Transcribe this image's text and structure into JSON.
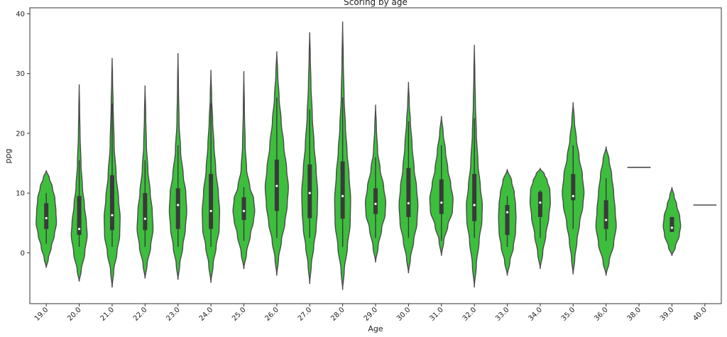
{
  "chart_data": {
    "type": "violin",
    "title": "Scoring by age",
    "xlabel": "Age",
    "ylabel": "ppg",
    "ylim": [
      -8.5,
      41
    ],
    "yticks": [
      0,
      10,
      20,
      30,
      40
    ],
    "grid": false,
    "legend": "none",
    "fill_color": "#3dbf3d",
    "edge_color": "#4a4a4a",
    "box_color": "#3a3a3a",
    "categories": [
      "19.0",
      "20.0",
      "21.0",
      "22.0",
      "23.0",
      "24.0",
      "25.0",
      "26.0",
      "27.0",
      "28.0",
      "29.0",
      "30.0",
      "31.0",
      "32.0",
      "33.0",
      "34.0",
      "35.0",
      "36.0",
      "38.0",
      "39.0",
      "40.0"
    ],
    "violins": [
      {
        "age": "19.0",
        "min": -2.5,
        "max": 13.8,
        "q1": 4.0,
        "median": 5.8,
        "q3": 8.3,
        "wlo": 1.5,
        "whi": 10.0,
        "width": 0.7,
        "shape": [
          [
            -2.5,
            0
          ],
          [
            -1,
            0.2
          ],
          [
            1,
            0.5
          ],
          [
            3,
            0.8
          ],
          [
            5,
            1
          ],
          [
            7,
            0.95
          ],
          [
            9,
            0.85
          ],
          [
            11,
            0.6
          ],
          [
            12.5,
            0.3
          ],
          [
            13.8,
            0
          ]
        ]
      },
      {
        "age": "20.0",
        "min": -4.8,
        "max": 28.2,
        "q1": 3.0,
        "median": 4.0,
        "q3": 9.5,
        "wlo": 1.0,
        "whi": 15.5,
        "width": 0.55,
        "shape": [
          [
            -4.8,
            0
          ],
          [
            -3,
            0.25
          ],
          [
            0,
            0.7
          ],
          [
            3,
            1
          ],
          [
            5,
            0.9
          ],
          [
            8,
            0.65
          ],
          [
            11,
            0.4
          ],
          [
            15,
            0.22
          ],
          [
            20,
            0.1
          ],
          [
            24,
            0.05
          ],
          [
            28.2,
            0
          ]
        ]
      },
      {
        "age": "21.0",
        "min": -5.8,
        "max": 32.6,
        "q1": 3.8,
        "median": 6.3,
        "q3": 13.0,
        "wlo": 1.0,
        "whi": 25.0,
        "width": 0.55,
        "shape": [
          [
            -5.8,
            0
          ],
          [
            -3,
            0.2
          ],
          [
            0,
            0.6
          ],
          [
            3,
            0.95
          ],
          [
            6,
            1
          ],
          [
            9,
            0.8
          ],
          [
            13,
            0.5
          ],
          [
            18,
            0.25
          ],
          [
            25,
            0.12
          ],
          [
            29,
            0.05
          ],
          [
            32.6,
            0
          ]
        ]
      },
      {
        "age": "22.0",
        "min": -4.3,
        "max": 28.0,
        "q1": 3.8,
        "median": 5.7,
        "q3": 10.0,
        "wlo": 1.0,
        "whi": 15.5,
        "width": 0.55,
        "shape": [
          [
            -4.3,
            0
          ],
          [
            -2,
            0.25
          ],
          [
            1,
            0.7
          ],
          [
            4,
            1
          ],
          [
            7,
            0.9
          ],
          [
            10,
            0.65
          ],
          [
            14,
            0.35
          ],
          [
            18,
            0.17
          ],
          [
            23,
            0.08
          ],
          [
            28,
            0
          ]
        ]
      },
      {
        "age": "23.0",
        "min": -4.5,
        "max": 33.4,
        "q1": 4.0,
        "median": 8.0,
        "q3": 10.8,
        "wlo": 1.0,
        "whi": 18.0,
        "width": 0.6,
        "shape": [
          [
            -4.5,
            0
          ],
          [
            -2,
            0.2
          ],
          [
            1,
            0.55
          ],
          [
            4,
            0.85
          ],
          [
            7,
            1
          ],
          [
            10,
            0.9
          ],
          [
            13,
            0.6
          ],
          [
            17,
            0.3
          ],
          [
            22,
            0.12
          ],
          [
            28,
            0.05
          ],
          [
            33.4,
            0
          ]
        ]
      },
      {
        "age": "24.0",
        "min": -5.0,
        "max": 30.6,
        "q1": 4.0,
        "median": 7.0,
        "q3": 13.2,
        "wlo": 1.0,
        "whi": 25.0,
        "width": 0.6,
        "shape": [
          [
            -5,
            0
          ],
          [
            -2,
            0.25
          ],
          [
            1,
            0.6
          ],
          [
            4,
            0.95
          ],
          [
            7,
            1
          ],
          [
            10,
            0.85
          ],
          [
            14,
            0.55
          ],
          [
            18,
            0.35
          ],
          [
            22,
            0.2
          ],
          [
            26,
            0.08
          ],
          [
            30.6,
            0
          ]
        ]
      },
      {
        "age": "25.0",
        "min": -2.7,
        "max": 30.4,
        "q1": 5.5,
        "median": 7.0,
        "q3": 9.3,
        "wlo": 2.0,
        "whi": 11.0,
        "width": 0.75,
        "shape": [
          [
            -2.7,
            0
          ],
          [
            0,
            0.25
          ],
          [
            3,
            0.6
          ],
          [
            5.5,
            0.9
          ],
          [
            7,
            1
          ],
          [
            9,
            0.9
          ],
          [
            11,
            0.55
          ],
          [
            14,
            0.25
          ],
          [
            18,
            0.12
          ],
          [
            24,
            0.05
          ],
          [
            30.4,
            0
          ]
        ]
      },
      {
        "age": "26.0",
        "min": -3.8,
        "max": 33.7,
        "q1": 7.0,
        "median": 11.2,
        "q3": 15.6,
        "wlo": 2.5,
        "whi": 26.0,
        "width": 0.8,
        "shape": [
          [
            -3.8,
            0
          ],
          [
            -1,
            0.15
          ],
          [
            2,
            0.4
          ],
          [
            5,
            0.7
          ],
          [
            8,
            0.9
          ],
          [
            11,
            1
          ],
          [
            14,
            0.85
          ],
          [
            18,
            0.6
          ],
          [
            22,
            0.38
          ],
          [
            26,
            0.2
          ],
          [
            30,
            0.08
          ],
          [
            33.7,
            0
          ]
        ]
      },
      {
        "age": "27.0",
        "min": -5.2,
        "max": 36.9,
        "q1": 5.8,
        "median": 10.0,
        "q3": 14.8,
        "wlo": 2.5,
        "whi": 24.0,
        "width": 0.55,
        "shape": [
          [
            -5.2,
            0
          ],
          [
            -2,
            0.2
          ],
          [
            1,
            0.5
          ],
          [
            4,
            0.8
          ],
          [
            7,
            0.95
          ],
          [
            10,
            1
          ],
          [
            14,
            0.8
          ],
          [
            18,
            0.55
          ],
          [
            23,
            0.32
          ],
          [
            28,
            0.16
          ],
          [
            33,
            0.07
          ],
          [
            36.9,
            0
          ]
        ]
      },
      {
        "age": "28.0",
        "min": -6.2,
        "max": 38.7,
        "q1": 5.7,
        "median": 9.5,
        "q3": 15.3,
        "wlo": 1.0,
        "whi": 26.0,
        "width": 0.55,
        "shape": [
          [
            -6.2,
            0
          ],
          [
            -3,
            0.2
          ],
          [
            1,
            0.6
          ],
          [
            5,
            0.95
          ],
          [
            9,
            1
          ],
          [
            13,
            0.8
          ],
          [
            17,
            0.55
          ],
          [
            21,
            0.35
          ],
          [
            26,
            0.18
          ],
          [
            32,
            0.08
          ],
          [
            38.7,
            0
          ]
        ]
      },
      {
        "age": "29.0",
        "min": -1.6,
        "max": 24.8,
        "q1": 6.5,
        "median": 8.2,
        "q3": 10.8,
        "wlo": 2.5,
        "whi": 16.0,
        "width": 0.7,
        "shape": [
          [
            -1.6,
            0
          ],
          [
            1,
            0.25
          ],
          [
            4,
            0.6
          ],
          [
            6.5,
            0.95
          ],
          [
            8.5,
            1
          ],
          [
            11,
            0.8
          ],
          [
            14,
            0.45
          ],
          [
            17,
            0.2
          ],
          [
            21,
            0.08
          ],
          [
            24.8,
            0
          ]
        ]
      },
      {
        "age": "30.0",
        "min": -3.4,
        "max": 28.6,
        "q1": 6.0,
        "median": 8.3,
        "q3": 14.2,
        "wlo": 2.5,
        "whi": 22.0,
        "width": 0.65,
        "shape": [
          [
            -3.4,
            0
          ],
          [
            -1,
            0.2
          ],
          [
            2,
            0.55
          ],
          [
            5,
            0.9
          ],
          [
            8,
            1
          ],
          [
            11,
            0.85
          ],
          [
            14,
            0.6
          ],
          [
            18,
            0.38
          ],
          [
            22,
            0.2
          ],
          [
            25,
            0.08
          ],
          [
            28.6,
            0
          ]
        ]
      },
      {
        "age": "31.0",
        "min": -0.5,
        "max": 22.9,
        "q1": 6.5,
        "median": 8.4,
        "q3": 12.3,
        "wlo": 2.0,
        "whi": 18.0,
        "width": 0.8,
        "shape": [
          [
            -0.5,
            0
          ],
          [
            2,
            0.2
          ],
          [
            4.5,
            0.55
          ],
          [
            7,
            0.95
          ],
          [
            9,
            1
          ],
          [
            11.5,
            0.8
          ],
          [
            14,
            0.55
          ],
          [
            17,
            0.35
          ],
          [
            20,
            0.15
          ],
          [
            22.9,
            0
          ]
        ]
      },
      {
        "age": "32.0",
        "min": -5.8,
        "max": 34.8,
        "q1": 5.3,
        "median": 8.0,
        "q3": 13.2,
        "wlo": 2.5,
        "whi": 22.5,
        "width": 0.55,
        "shape": [
          [
            -5.8,
            0
          ],
          [
            -2,
            0.25
          ],
          [
            2,
            0.6
          ],
          [
            5.5,
            0.95
          ],
          [
            8,
            1
          ],
          [
            11,
            0.75
          ],
          [
            15,
            0.45
          ],
          [
            20,
            0.25
          ],
          [
            25,
            0.13
          ],
          [
            30,
            0.06
          ],
          [
            34.8,
            0
          ]
        ]
      },
      {
        "age": "33.0",
        "min": -3.8,
        "max": 14.0,
        "q1": 3.0,
        "median": 6.8,
        "q3": 8.0,
        "wlo": 1.0,
        "whi": 9.5,
        "width": 0.6,
        "shape": [
          [
            -3.8,
            0
          ],
          [
            -1.5,
            0.3
          ],
          [
            1,
            0.7
          ],
          [
            3.5,
            0.95
          ],
          [
            6,
            1
          ],
          [
            8,
            0.95
          ],
          [
            10,
            0.8
          ],
          [
            12,
            0.5
          ],
          [
            14,
            0
          ]
        ]
      },
      {
        "age": "34.0",
        "min": -2.7,
        "max": 14.1,
        "q1": 6.0,
        "median": 8.4,
        "q3": 10.2,
        "wlo": 2.5,
        "whi": 10.5,
        "width": 0.7,
        "shape": [
          [
            -2.7,
            0
          ],
          [
            0,
            0.25
          ],
          [
            3,
            0.55
          ],
          [
            6,
            0.85
          ],
          [
            8.5,
            1
          ],
          [
            10.5,
            0.95
          ],
          [
            12,
            0.7
          ],
          [
            13.2,
            0.4
          ],
          [
            14.1,
            0
          ]
        ]
      },
      {
        "age": "35.0",
        "min": -3.6,
        "max": 25.2,
        "q1": 8.8,
        "median": 9.5,
        "q3": 13.2,
        "wlo": 4.0,
        "whi": 18.0,
        "width": 0.75,
        "shape": [
          [
            -3.6,
            0
          ],
          [
            -1,
            0.15
          ],
          [
            2,
            0.35
          ],
          [
            5,
            0.6
          ],
          [
            8,
            0.9
          ],
          [
            10,
            1
          ],
          [
            13,
            0.85
          ],
          [
            16,
            0.55
          ],
          [
            19,
            0.3
          ],
          [
            22,
            0.12
          ],
          [
            25.2,
            0
          ]
        ]
      },
      {
        "age": "36.0",
        "min": -3.8,
        "max": 17.8,
        "q1": 4.0,
        "median": 5.5,
        "q3": 8.8,
        "wlo": 2.0,
        "whi": 12.5,
        "width": 0.7,
        "shape": [
          [
            -3.8,
            0
          ],
          [
            -1.5,
            0.3
          ],
          [
            1.5,
            0.75
          ],
          [
            4.5,
            1
          ],
          [
            7,
            0.9
          ],
          [
            10,
            0.75
          ],
          [
            13,
            0.55
          ],
          [
            15.5,
            0.3
          ],
          [
            17.8,
            0
          ]
        ]
      },
      {
        "age": "38.0",
        "value": 14.3,
        "width": 0.8
      },
      {
        "age": "39.0",
        "min": -0.5,
        "max": 11.0,
        "q1": 3.5,
        "median": 4.2,
        "q3": 6.0,
        "wlo": 3.5,
        "whi": 6.0,
        "width": 0.6,
        "shape": [
          [
            -0.5,
            0
          ],
          [
            1,
            0.4
          ],
          [
            3,
            0.85
          ],
          [
            4.5,
            1
          ],
          [
            6,
            0.9
          ],
          [
            8,
            0.55
          ],
          [
            9.5,
            0.25
          ],
          [
            11,
            0
          ]
        ]
      },
      {
        "age": "40.0",
        "value": 8.0,
        "width": 0.8
      }
    ]
  }
}
